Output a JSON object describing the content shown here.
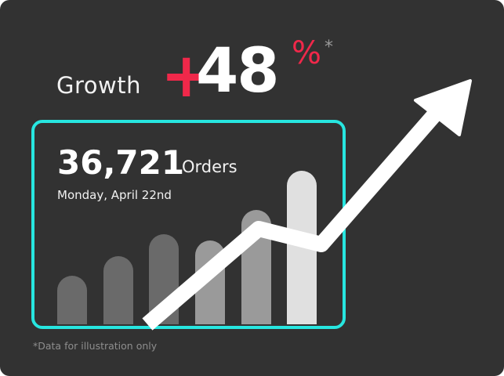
{
  "headline": {
    "label": "Growth",
    "sign": "+",
    "value": "48",
    "unit": "%",
    "footnote_marker": "*"
  },
  "stat": {
    "value": "36,721",
    "label": "Orders",
    "date": "Monday, April 22nd"
  },
  "footnote": "*Data for illustration only",
  "bars": [
    {
      "value": 62,
      "color": "#6a6a6a"
    },
    {
      "value": 87,
      "color": "#6a6a6a"
    },
    {
      "value": 115,
      "color": "#6a6a6a"
    },
    {
      "value": 107,
      "color": "#9a9a9a"
    },
    {
      "value": 146,
      "color": "#9a9a9a"
    },
    {
      "value": 196,
      "color": "#e0e0e0"
    }
  ],
  "colors": {
    "background": "#323232",
    "accent": "#f0284a",
    "frame": "#27e6e0",
    "arrow": "#ffffff"
  },
  "icons": {
    "trend": "trend-up-arrow-icon"
  }
}
